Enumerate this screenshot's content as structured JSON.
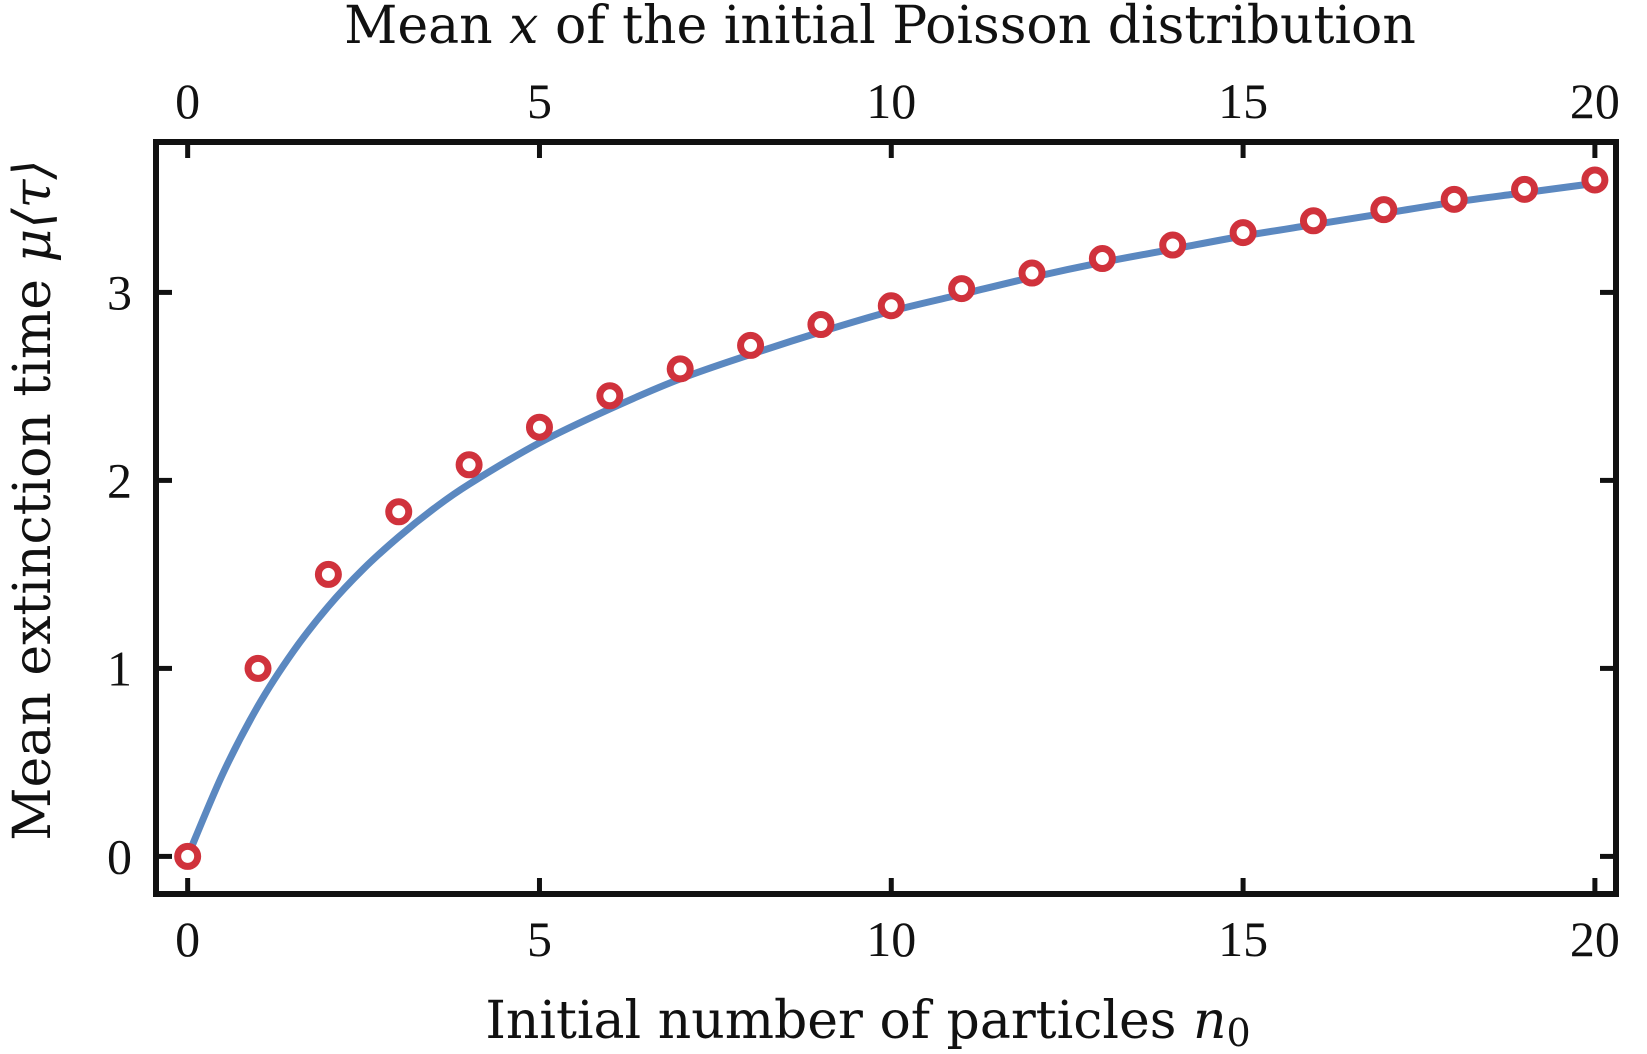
{
  "chart_data": {
    "type": "scatter",
    "top_axis_label": {
      "pre": "Mean ",
      "var": "x",
      "post": " of the initial Poisson distribution"
    },
    "xlabel": {
      "pre": "Initial number of particles ",
      "var": "n",
      "sub": "0"
    },
    "ylabel": {
      "pre": "Mean extinction time ",
      "var": "μ⟨τ⟩"
    },
    "xlim": [
      -0.45,
      20.3
    ],
    "ylim": [
      -0.2,
      3.8
    ],
    "x_ticks": [
      0,
      5,
      10,
      15,
      20
    ],
    "x_tick_labels": [
      "0",
      "5",
      "10",
      "15",
      "20"
    ],
    "top_ticks": [
      0,
      5,
      10,
      15,
      20
    ],
    "top_tick_labels": [
      "0",
      "5",
      "10",
      "15",
      "20"
    ],
    "y_ticks": [
      0,
      1,
      2,
      3
    ],
    "y_tick_labels": [
      "0",
      "1",
      "2",
      "3"
    ],
    "grid": false,
    "series": [
      {
        "kind": "points",
        "color": "#d0323c",
        "x": [
          0,
          1,
          2,
          3,
          4,
          5,
          6,
          7,
          8,
          9,
          10,
          11,
          12,
          13,
          14,
          15,
          16,
          17,
          18,
          19,
          20
        ],
        "y": [
          0,
          1.0,
          1.5,
          1.833,
          2.083,
          2.283,
          2.45,
          2.593,
          2.718,
          2.829,
          2.929,
          3.02,
          3.103,
          3.18,
          3.252,
          3.318,
          3.381,
          3.44,
          3.495,
          3.548,
          3.598
        ]
      },
      {
        "kind": "curve",
        "color": "#5b88c0",
        "x": [
          0,
          0.5,
          1,
          1.5,
          2,
          2.5,
          3,
          3.5,
          4,
          5,
          6,
          7,
          8,
          9,
          10,
          11,
          12,
          13,
          14,
          15,
          16,
          17,
          18,
          19,
          20
        ],
        "y": [
          0,
          0.44,
          0.8,
          1.09,
          1.33,
          1.53,
          1.7,
          1.85,
          1.98,
          2.2,
          2.38,
          2.54,
          2.67,
          2.79,
          2.9,
          2.99,
          3.08,
          3.16,
          3.23,
          3.3,
          3.36,
          3.42,
          3.48,
          3.53,
          3.58
        ]
      }
    ]
  }
}
